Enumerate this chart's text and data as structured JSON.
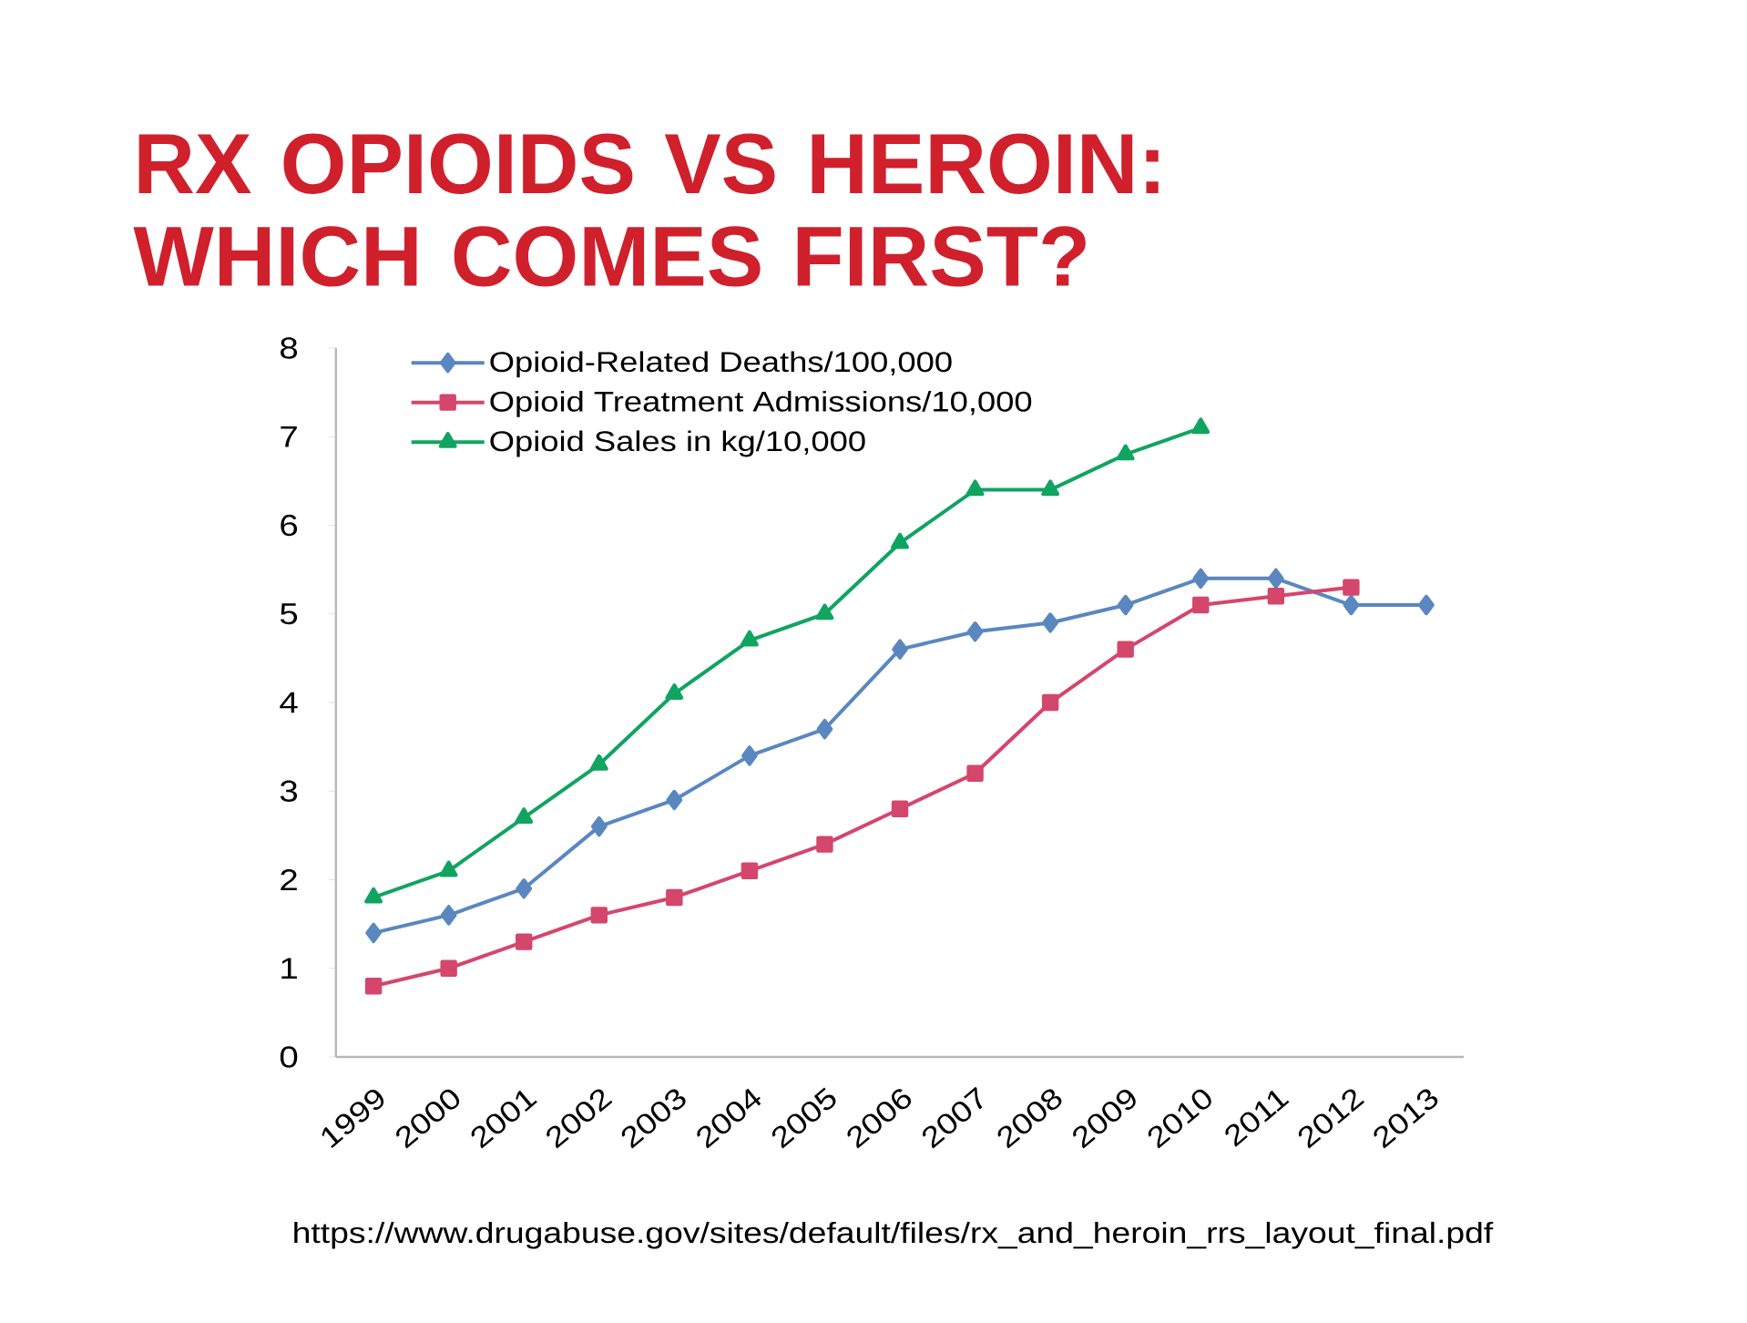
{
  "chart_data": {
    "type": "line",
    "title": "RX OPIOIDS VS HEROIN: WHICH COMES FIRST?",
    "annotations": [
      "https://www.drugabuse.gov/sites/default/files/rx_and_heroin_rrs_layout_final.pdf"
    ],
    "categories": [
      "1999",
      "2000",
      "2001",
      "2002",
      "2003",
      "2004",
      "2005",
      "2006",
      "2007",
      "2008",
      "2009",
      "2010",
      "2011",
      "2012",
      "2013"
    ],
    "series": [
      {
        "name": "Opioid-Related Deaths/100,000",
        "color": "#5a87c0",
        "marker": "diamond",
        "values": [
          1.4,
          1.6,
          1.9,
          2.6,
          2.9,
          3.4,
          3.7,
          4.6,
          4.8,
          4.9,
          5.1,
          5.4,
          5.4,
          5.1,
          5.1
        ]
      },
      {
        "name": "Opioid Treatment Admissions/10,000",
        "color": "#d4466c",
        "marker": "square",
        "values": [
          0.8,
          1.0,
          1.3,
          1.6,
          1.8,
          2.1,
          2.4,
          2.8,
          3.2,
          4.0,
          4.6,
          5.1,
          5.2,
          5.3,
          null
        ]
      },
      {
        "name": "Opioid Sales in kg/10,000",
        "color": "#10a461",
        "marker": "triangle",
        "values": [
          1.8,
          2.1,
          2.7,
          3.3,
          4.1,
          4.7,
          5.0,
          5.8,
          6.4,
          6.4,
          6.8,
          7.1,
          null,
          null,
          null
        ]
      }
    ],
    "ylim": [
      0,
      8
    ],
    "yticks": [
      0,
      1,
      2,
      3,
      4,
      5,
      6,
      7,
      8
    ],
    "legend": "top left"
  }
}
